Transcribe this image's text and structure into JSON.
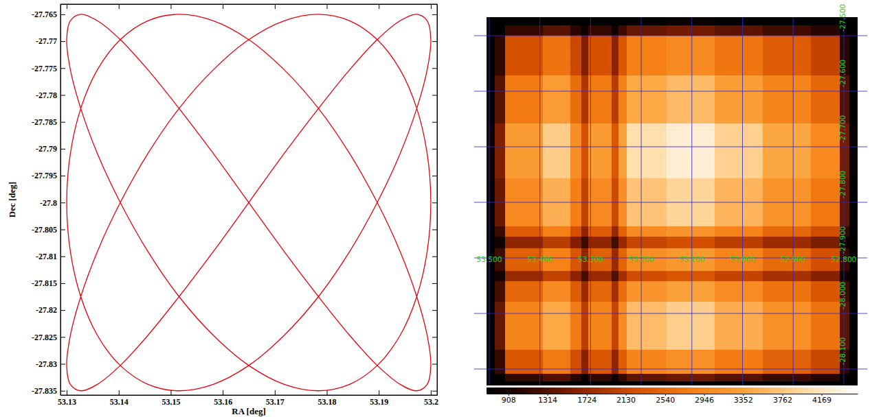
{
  "chart_data": [
    {
      "type": "line",
      "xlabel": "RA [deg]",
      "ylabel": "Dec [deg]",
      "x": [
        53.165,
        53.1718,
        53.1784,
        53.1844,
        53.1897,
        53.1941,
        53.1973,
        53.1993,
        53.2,
        53.1993,
        53.1973,
        53.1941,
        53.1897,
        53.1844,
        53.1784,
        53.1718,
        53.165,
        53.1582,
        53.1516,
        53.1456,
        53.1403,
        53.1359,
        53.1327,
        53.1307,
        53.13,
        53.1307,
        53.1327,
        53.1359,
        53.1403,
        53.1456,
        53.1516,
        53.1582,
        53.165,
        53.1718,
        53.1784,
        53.1844,
        53.1897,
        53.1941,
        53.1973,
        53.1993,
        53.2,
        53.1993,
        53.1973,
        53.1941,
        53.1897,
        53.1844,
        53.1784,
        53.1718,
        53.165,
        53.1582,
        53.1516,
        53.1456,
        53.1403,
        53.1359,
        53.1327,
        53.1307,
        53.13,
        53.1307,
        53.1327,
        53.1359,
        53.1403,
        53.1456,
        53.1516,
        53.1582,
        53.165,
        53.1718,
        53.1784,
        53.1844,
        53.1897,
        53.1941,
        53.1973,
        53.1993,
        53.2,
        53.1993,
        53.1973,
        53.1941,
        53.1897,
        53.1844,
        53.1784,
        53.1718,
        53.165,
        53.1582,
        53.1516,
        53.1456,
        53.1403,
        53.1359,
        53.1327,
        53.1307,
        53.13,
        53.1307,
        53.1327,
        53.1359,
        53.1403,
        53.1456,
        53.1516,
        53.1582,
        53.165
      ],
      "values": [
        -27.8,
        -27.7909,
        -27.7825,
        -27.7753,
        -27.7697,
        -27.7662,
        -27.765,
        -27.7662,
        -27.7697,
        -27.7753,
        -27.7825,
        -27.7909,
        -27.8,
        -27.8091,
        -27.8175,
        -27.8247,
        -27.8303,
        -27.8338,
        -27.835,
        -27.8338,
        -27.8303,
        -27.8247,
        -27.8175,
        -27.8091,
        -27.8,
        -27.7909,
        -27.7825,
        -27.7753,
        -27.7697,
        -27.7662,
        -27.765,
        -27.7662,
        -27.7697,
        -27.7753,
        -27.7825,
        -27.7909,
        -27.8,
        -27.8091,
        -27.8175,
        -27.8247,
        -27.8303,
        -27.8338,
        -27.835,
        -27.8338,
        -27.8303,
        -27.8247,
        -27.8175,
        -27.8091,
        -27.8,
        -27.7909,
        -27.7825,
        -27.7753,
        -27.7697,
        -27.7662,
        -27.765,
        -27.7662,
        -27.7697,
        -27.7753,
        -27.7825,
        -27.7909,
        -27.8,
        -27.8091,
        -27.8175,
        -27.8247,
        -27.8303,
        -27.8338,
        -27.835,
        -27.8338,
        -27.8303,
        -27.8247,
        -27.8175,
        -27.8091,
        -27.8,
        -27.7909,
        -27.7825,
        -27.7753,
        -27.7697,
        -27.7662,
        -27.765,
        -27.7662,
        -27.7697,
        -27.7753,
        -27.7825,
        -27.7909,
        -27.8,
        -27.8091,
        -27.8175,
        -27.8247,
        -27.8303,
        -27.8338,
        -27.835,
        -27.8338,
        -27.8303,
        -27.8247,
        -27.8175,
        -27.8091,
        -27.8
      ],
      "color": "#e8000b",
      "xlim": [
        53.1288,
        53.2012
      ],
      "ylim": [
        -27.8358,
        -27.7631
      ],
      "xticks": [
        53.13,
        53.14,
        53.15,
        53.16,
        53.17,
        53.18,
        53.19,
        53.2
      ],
      "yticks": [
        -27.835,
        -27.83,
        -27.825,
        -27.82,
        -27.815,
        -27.81,
        -27.805,
        -27.8,
        -27.795,
        -27.79,
        -27.785,
        -27.78,
        -27.775,
        -27.77,
        -27.765
      ],
      "grid": false
    },
    {
      "type": "heatmap",
      "xlim": [
        53.5054,
        52.7727
      ],
      "ylim": [
        -27.4667,
        -28.1296
      ],
      "xticks": [
        {
          "value": 53.5,
          "label": "53.500"
        },
        {
          "value": 53.4,
          "label": "53.400"
        },
        {
          "value": 53.3,
          "label": "53.300"
        },
        {
          "value": 53.2,
          "label": "53.200"
        },
        {
          "value": 53.1,
          "label": "53.100"
        },
        {
          "value": 53.0,
          "label": "53.000"
        },
        {
          "value": 52.9,
          "label": "52.900"
        },
        {
          "value": 52.8,
          "label": "52.800"
        }
      ],
      "yticks": [
        {
          "value": -27.5,
          "label": "-27.500"
        },
        {
          "value": -27.6,
          "label": "-27.600"
        },
        {
          "value": -27.7,
          "label": "-27.700"
        },
        {
          "value": -27.8,
          "label": "-27.800"
        },
        {
          "value": -27.9,
          "label": "-27.900"
        },
        {
          "value": -28.0,
          "label": "-28.000"
        },
        {
          "value": -28.1,
          "label": "-28.100"
        }
      ],
      "grid": true,
      "x_edges": [
        53.5054,
        53.4891,
        53.4688,
        53.3942,
        53.3399,
        53.3182,
        53.3046,
        53.2585,
        53.2449,
        53.2286,
        53.1499,
        53.055,
        52.96,
        52.865,
        52.808,
        52.789,
        52.7727
      ],
      "y_edges": [
        -27.4667,
        -27.4815,
        -27.5,
        -27.5716,
        -27.658,
        -27.7568,
        -27.8432,
        -27.8617,
        -27.8827,
        -27.9235,
        -27.942,
        -27.979,
        -28.0654,
        -28.1086,
        -28.1222,
        -28.1296
      ],
      "cells": [
        [
          680,
          680,
          680,
          689,
          680,
          680,
          680,
          680,
          680,
          729,
          770,
          697,
          680,
          680,
          680,
          680
        ],
        [
          680,
          680,
          1134,
          1339,
          1071,
          788,
          1134,
          819,
          1166,
          1418,
          1496,
          1355,
          1197,
          1040,
          680,
          680
        ],
        [
          680,
          1103,
          2268,
          2678,
          2142,
          1575,
          2268,
          1638,
          2331,
          2835,
          2993,
          2709,
          2394,
          2079,
          1071,
          680
        ],
        [
          689,
          1339,
          2754,
          3251,
          2601,
          1913,
          2754,
          1989,
          2831,
          3443,
          3634,
          3290,
          2907,
          2525,
          1301,
          680
        ],
        [
          810,
          1575,
          3240,
          3825,
          3060,
          2250,
          3240,
          2340,
          3330,
          4050,
          4275,
          3870,
          3420,
          2970,
          1530,
          765
        ],
        [
          745,
          1449,
          2981,
          3519,
          2815,
          2070,
          2981,
          2153,
          3064,
          3726,
          3933,
          3560,
          3146,
          2732,
          1408,
          704
        ],
        [
          680,
          1166,
          2398,
          2831,
          2264,
          1665,
          2398,
          1732,
          2464,
          2997,
          3164,
          2864,
          2531,
          2198,
          1132,
          680
        ],
        [
          680,
          819,
          1685,
          1989,
          1591,
          1170,
          1685,
          1217,
          1732,
          2106,
          2223,
          2012,
          1778,
          1544,
          796,
          680
        ],
        [
          680,
          1181,
          2430,
          2869,
          2295,
          1688,
          2430,
          1755,
          2498,
          3038,
          3206,
          2903,
          2565,
          2228,
          1148,
          680
        ],
        [
          680,
          851,
          1750,
          2066,
          1652,
          1215,
          1750,
          1264,
          1798,
          2187,
          2309,
          2090,
          1847,
          1604,
          826,
          680
        ],
        [
          680,
          1229,
          2527,
          2984,
          2387,
          1755,
          2527,
          1825,
          2597,
          3159,
          3335,
          3019,
          2668,
          2317,
          1193,
          680
        ],
        [
          729,
          1418,
          2916,
          3443,
          2754,
          2025,
          2916,
          2106,
          2997,
          3645,
          3848,
          3483,
          3078,
          2673,
          1377,
          689
        ],
        [
          680,
          1134,
          2333,
          2754,
          2203,
          1620,
          2333,
          1685,
          2398,
          2916,
          3078,
          2786,
          2462,
          2138,
          1102,
          680
        ],
        [
          680,
          680,
          1102,
          1301,
          1040,
          765,
          1102,
          796,
          1132,
          1377,
          1454,
          1316,
          1163,
          1010,
          680,
          680
        ],
        [
          680,
          680,
          680,
          680,
          680,
          680,
          680,
          680,
          680,
          689,
          727,
          680,
          680,
          680,
          680,
          680
        ]
      ],
      "colorbar": {
        "range": [
          680,
          4545
        ],
        "ticks": [
          908,
          1314,
          1724,
          2130,
          2540,
          2946,
          3352,
          3762,
          4169
        ]
      }
    }
  ]
}
